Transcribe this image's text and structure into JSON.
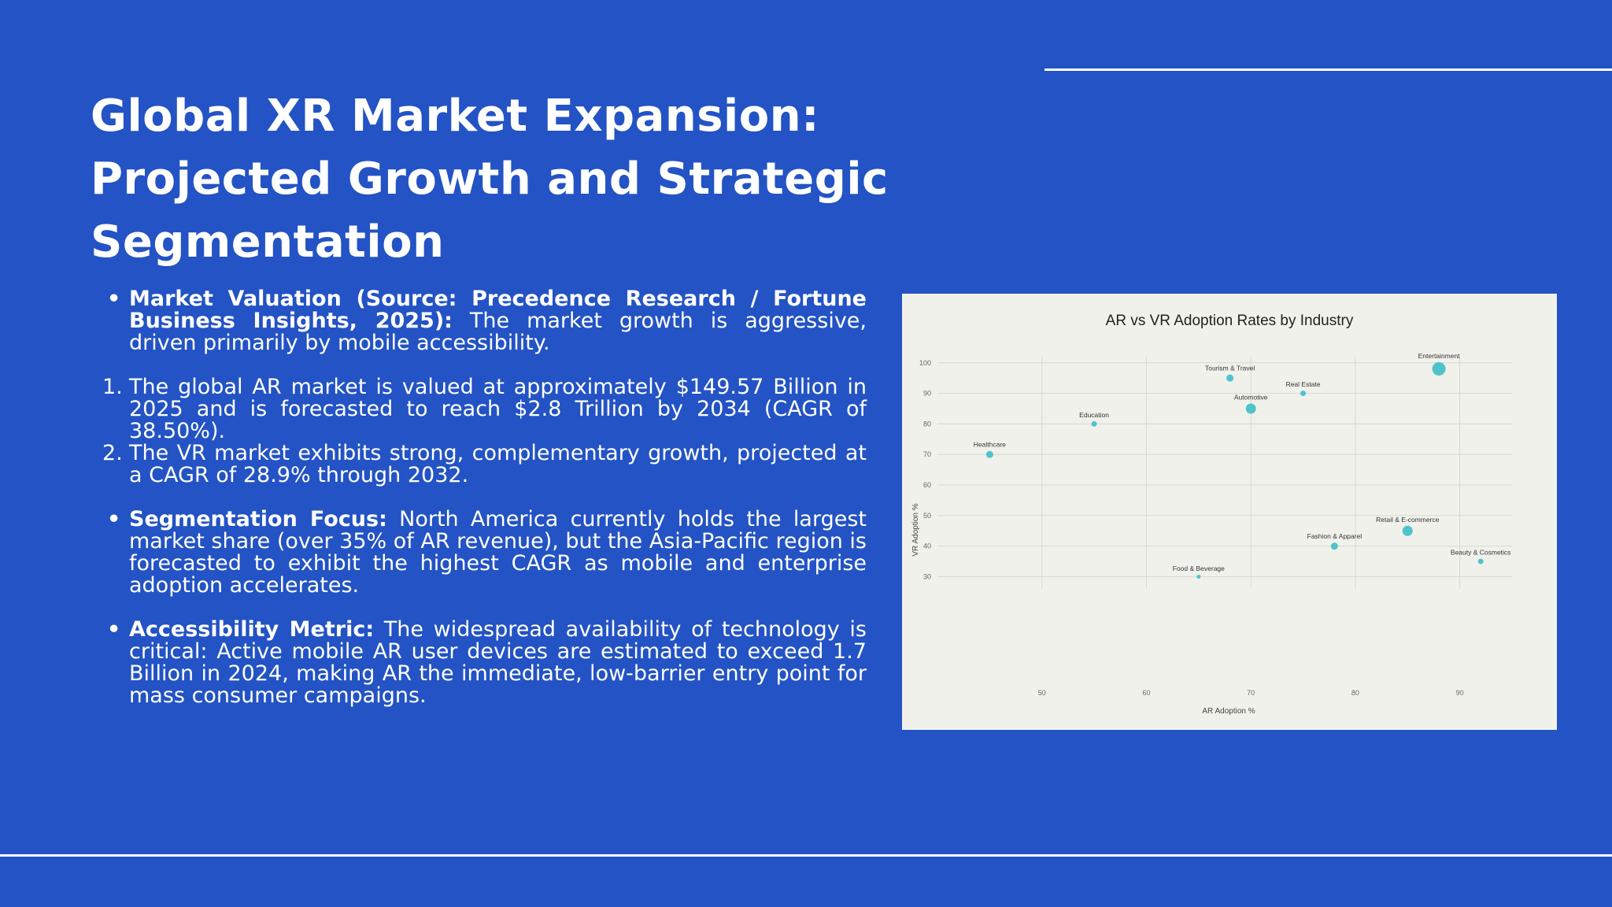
{
  "slide": {
    "title": "Global XR Market Expansion: Projected Growth and Strategic Segmentation",
    "bullet1": {
      "heading": "Market Valuation (Source: Precedence Research / Fortune Business Insights, 2025):",
      "text": " The market growth is aggressive, driven primarily by mobile accessibility."
    },
    "numbered": [
      {
        "n": "1.",
        "text": "The global AR market is valued at approximately $149.57 Billion in 2025 and is forecasted to reach $2.8 Trillion by 2034 (CAGR of 38.50%)."
      },
      {
        "n": "2.",
        "text": "The VR market exhibits strong, complementary growth, projected at a CAGR of 28.9% through 2032."
      }
    ],
    "bullet2": {
      "heading": "Segmentation Focus:",
      "text": " North America currently holds the largest market share (over 35% of AR revenue), but the Asia-Pacific region is forecasted to exhibit the highest CAGR as mobile and enterprise adoption accelerates."
    },
    "bullet3": {
      "heading": "Accessibility Metric:",
      "text": " The widespread availability of technology is critical: Active mobile AR user devices are estimated to exceed 1.7 Billion in 2024, making AR the immediate, low-barrier entry point for mass consumer campaigns."
    }
  },
  "colors": {
    "background": "#2353c4",
    "point": "#4ec3c9",
    "card": "#f1f1ec"
  },
  "chart_data": {
    "type": "scatter",
    "title": "AR vs VR Adoption Rates by Industry",
    "xlabel": "AR Adoption %",
    "ylabel": "VR Adoption %",
    "xlim": [
      40,
      95
    ],
    "ylim": [
      26,
      102
    ],
    "xticks": [
      50,
      60,
      70,
      80,
      90
    ],
    "yticks": [
      30,
      40,
      50,
      60,
      70,
      80,
      90,
      100
    ],
    "grid": true,
    "points": [
      {
        "label": "Entertainment",
        "x": 88,
        "y": 98,
        "size": "large"
      },
      {
        "label": "Tourism & Travel",
        "x": 68,
        "y": 95,
        "size": "small"
      },
      {
        "label": "Real Estate",
        "x": 75,
        "y": 90,
        "size": "tiny"
      },
      {
        "label": "Automotive",
        "x": 70,
        "y": 85,
        "size": "medium"
      },
      {
        "label": "Education",
        "x": 55,
        "y": 80,
        "size": "tiny"
      },
      {
        "label": "Healthcare",
        "x": 45,
        "y": 70,
        "size": "small"
      },
      {
        "label": "Retail & E-commerce",
        "x": 85,
        "y": 45,
        "size": "medium"
      },
      {
        "label": "Fashion & Apparel",
        "x": 78,
        "y": 40,
        "size": "small"
      },
      {
        "label": "Beauty & Cosmetics",
        "x": 92,
        "y": 35,
        "size": "tiny"
      },
      {
        "label": "Food & Beverage",
        "x": 65,
        "y": 30,
        "size": "micro"
      }
    ]
  }
}
